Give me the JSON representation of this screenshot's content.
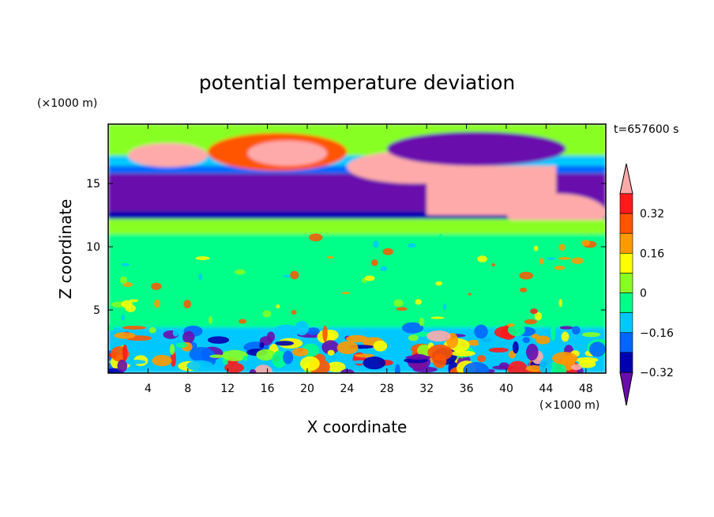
{
  "chart_data": {
    "type": "heatmap",
    "title": "potential temperature deviation",
    "xlabel": "X coordinate",
    "ylabel": "Z coordinate",
    "x_unit": "(×1000 m)",
    "y_unit": "(×1000 m)",
    "time_label": "t=657600 s",
    "xlim": [
      0,
      50
    ],
    "ylim": [
      0,
      19.7
    ],
    "x_ticks": [
      4,
      8,
      12,
      16,
      20,
      24,
      28,
      32,
      36,
      40,
      44,
      48
    ],
    "y_ticks": [
      5,
      10,
      15
    ],
    "colorbar": {
      "labeled_ticks": [
        0.32,
        0.16,
        0,
        -0.16,
        -0.32
      ],
      "tick_labels": [
        "0.32",
        "0.16",
        "0",
        "−0.16",
        "−0.32"
      ],
      "levels": [
        -0.4,
        -0.32,
        -0.24,
        -0.16,
        -0.08,
        0,
        0.08,
        0.16,
        0.24,
        0.32,
        0.4
      ],
      "colors": [
        "#6a0dad",
        "#0000b0",
        "#0066ff",
        "#00c8ff",
        "#00ff88",
        "#88ff22",
        "#ffff00",
        "#ff9900",
        "#ff5500",
        "#ff1a1a",
        "#ffaaaa"
      ],
      "extend": "both"
    },
    "field_regions": [
      {
        "x": [
          0,
          50
        ],
        "z": [
          3.6,
          12
        ],
        "value": -0.04
      },
      {
        "x": [
          0,
          50
        ],
        "z": [
          12,
          19.7
        ],
        "value": 0.02
      },
      {
        "x": [
          0,
          50
        ],
        "z": [
          0,
          3.6
        ],
        "value": -0.1
      },
      {
        "x": [
          0,
          50
        ],
        "z": [
          12.8,
          15.8
        ],
        "value": -0.38
      },
      {
        "x": [
          0,
          50
        ],
        "z": [
          12.2,
          12.8
        ],
        "value": -0.28
      },
      {
        "x": [
          0,
          50
        ],
        "z": [
          15.8,
          16.4
        ],
        "value": -0.22
      },
      {
        "x": [
          0,
          50
        ],
        "z": [
          16.4,
          17.2
        ],
        "value": -0.12
      },
      {
        "x": [
          2,
          10
        ],
        "z": [
          16.3,
          18.2
        ],
        "value": 0.4
      },
      {
        "x": [
          10,
          24
        ],
        "z": [
          16,
          19
        ],
        "value": 0.28
      },
      {
        "x": [
          14,
          22
        ],
        "z": [
          16.4,
          18.4
        ],
        "value": 0.4
      },
      {
        "x": [
          24,
          38
        ],
        "z": [
          15,
          17.6
        ],
        "value": 0.4
      },
      {
        "x": [
          32,
          45
        ],
        "z": [
          12.5,
          16.4
        ],
        "value": 0.4
      },
      {
        "x": [
          40,
          50
        ],
        "z": [
          11.2,
          14.2
        ],
        "value": 0.4
      },
      {
        "x": [
          28,
          46
        ],
        "z": [
          16.4,
          19.1
        ],
        "value": -0.36
      },
      {
        "x": [
          0,
          50
        ],
        "z": [
          11,
          12.1
        ],
        "value": 0.04
      }
    ]
  }
}
